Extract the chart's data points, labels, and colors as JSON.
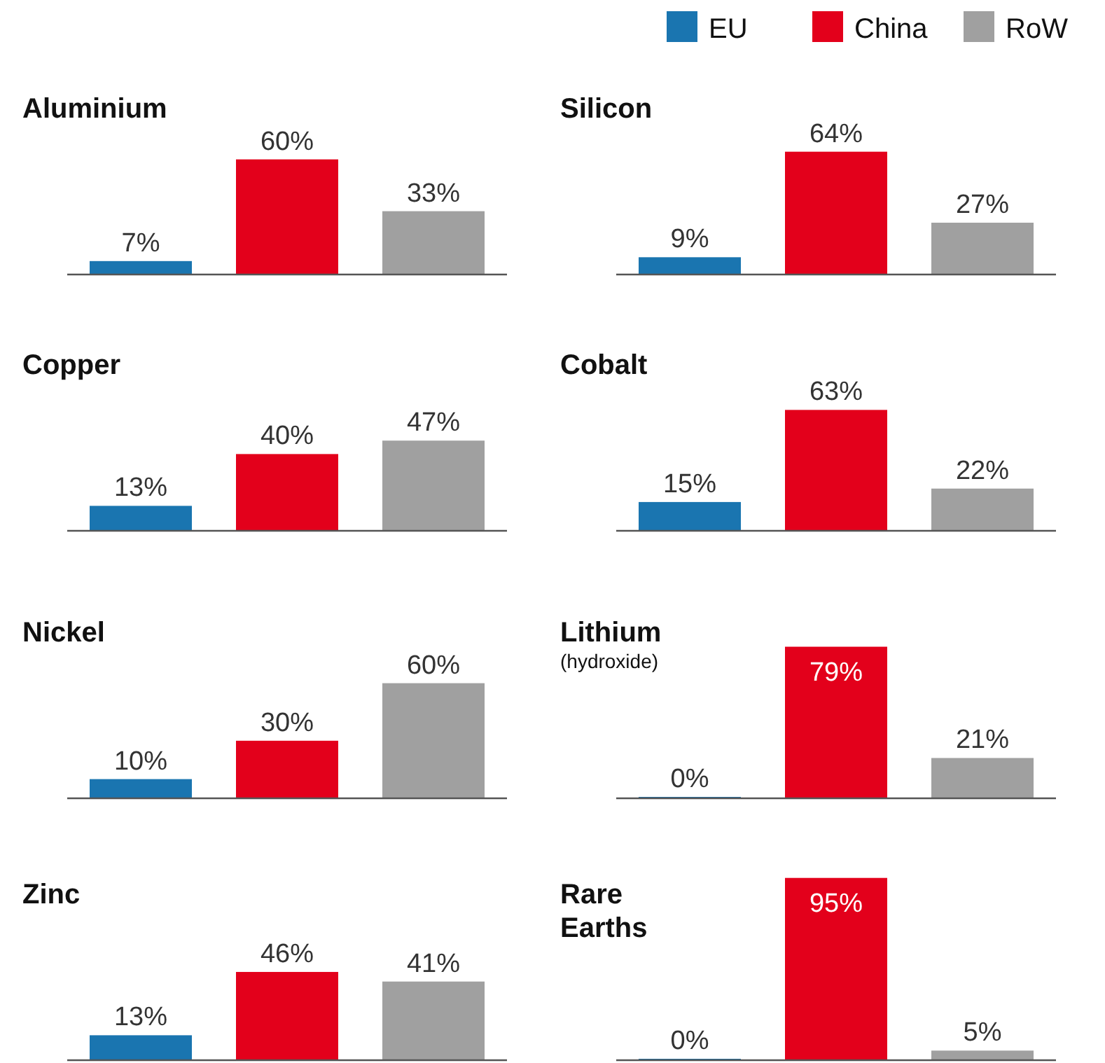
{
  "chart_data": [
    {
      "type": "bar",
      "title": "Aluminium",
      "categories": [
        null
      ],
      "legend": "top right",
      "series": [
        {
          "name": "EU",
          "color": "#1a75b0",
          "values": [
            7
          ],
          "value_labels": [
            "7%"
          ]
        },
        {
          "name": "China",
          "color": "#e3001b",
          "values": [
            60
          ],
          "value_labels": [
            "60%"
          ]
        },
        {
          "name": "RoW",
          "color": "#a0a0a0",
          "values": [
            33
          ],
          "value_labels": [
            "33%"
          ]
        }
      ]
    },
    {
      "type": "bar",
      "title": "Silicon",
      "categories": [
        null
      ],
      "series": [
        {
          "color": "#1a75b0",
          "values": [
            9
          ],
          "value_labels": [
            "9%"
          ]
        },
        {
          "color": "#e3001b",
          "values": [
            64
          ],
          "value_labels": [
            "64%"
          ]
        },
        {
          "color": "#a0a0a0",
          "values": [
            27
          ],
          "value_labels": [
            "27%"
          ]
        }
      ]
    },
    {
      "type": "bar",
      "title": "Copper",
      "categories": [
        null
      ],
      "series": [
        {
          "color": "#1a75b0",
          "values": [
            13
          ],
          "value_labels": [
            "13%"
          ]
        },
        {
          "color": "#e3001b",
          "values": [
            40
          ],
          "value_labels": [
            "40%"
          ]
        },
        {
          "color": "#a0a0a0",
          "values": [
            47
          ],
          "value_labels": [
            "47%"
          ]
        }
      ]
    },
    {
      "type": "bar",
      "title": "Cobalt",
      "categories": [
        null
      ],
      "series": [
        {
          "color": "#1a75b0",
          "values": [
            15
          ],
          "value_labels": [
            "15%"
          ]
        },
        {
          "color": "#e3001b",
          "values": [
            63
          ],
          "value_labels": [
            "63%"
          ]
        },
        {
          "color": "#a0a0a0",
          "values": [
            22
          ],
          "value_labels": [
            "22%"
          ]
        }
      ]
    },
    {
      "type": "bar",
      "title": "Nickel",
      "categories": [
        null
      ],
      "series": [
        {
          "color": "#1a75b0",
          "values": [
            10
          ],
          "value_labels": [
            "10%"
          ]
        },
        {
          "color": "#e3001b",
          "values": [
            30
          ],
          "value_labels": [
            "30%"
          ]
        },
        {
          "color": "#a0a0a0",
          "values": [
            60
          ],
          "value_labels": [
            "60%"
          ]
        }
      ]
    },
    {
      "type": "bar",
      "title": "Lithium",
      "subtitle": "(hydroxide)",
      "categories": [
        null
      ],
      "series": [
        {
          "color": "#1a75b0",
          "values": [
            0
          ],
          "value_labels": [
            "0%"
          ]
        },
        {
          "color": "#e3001b",
          "values": [
            79
          ],
          "value_labels": [
            "79%"
          ]
        },
        {
          "color": "#a0a0a0",
          "values": [
            21
          ],
          "value_labels": [
            "21%"
          ]
        }
      ]
    },
    {
      "type": "bar",
      "title": "Zinc",
      "categories": [
        null
      ],
      "series": [
        {
          "color": "#1a75b0",
          "values": [
            13
          ],
          "value_labels": [
            "13%"
          ]
        },
        {
          "color": "#e3001b",
          "values": [
            46
          ],
          "value_labels": [
            "46%"
          ]
        },
        {
          "color": "#a0a0a0",
          "values": [
            41
          ],
          "value_labels": [
            "41%"
          ]
        }
      ]
    },
    {
      "type": "bar",
      "title": "Rare Earths",
      "categories": [
        null
      ],
      "series": [
        {
          "color": "#1a75b0",
          "values": [
            0
          ],
          "value_labels": [
            "0%"
          ]
        },
        {
          "color": "#e3001b",
          "values": [
            95
          ],
          "value_labels": [
            "95%"
          ]
        },
        {
          "color": "#a0a0a0",
          "values": [
            5
          ],
          "value_labels": [
            "5%"
          ]
        }
      ]
    }
  ]
}
